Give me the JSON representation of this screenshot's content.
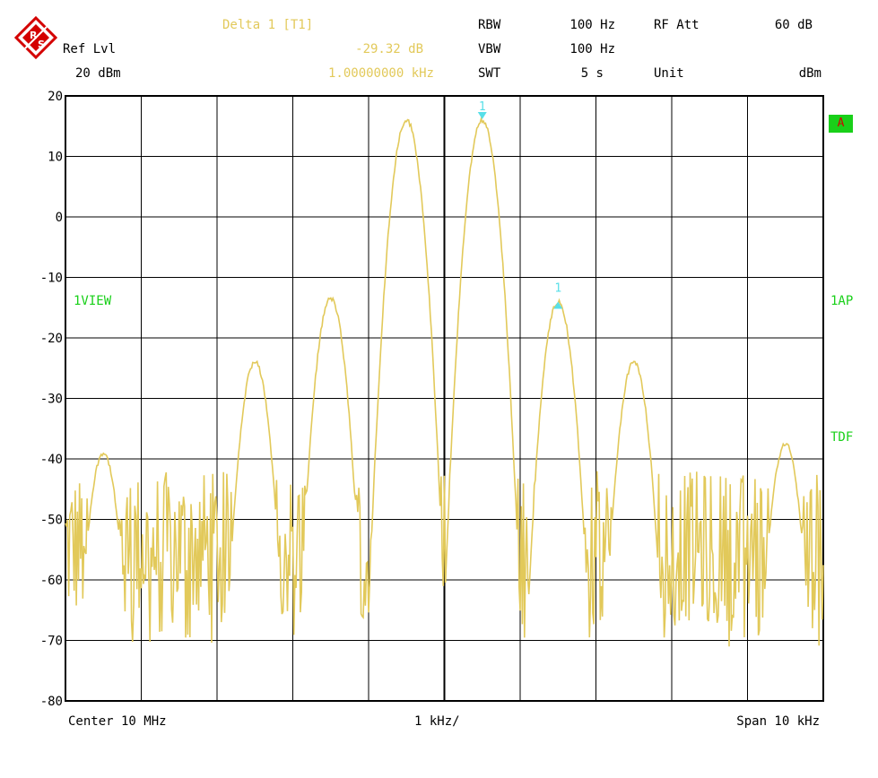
{
  "header": {
    "marker_title": "Delta 1 [T1]",
    "marker_level": "-29.32 dB",
    "marker_freq": "1.00000000 kHz",
    "ref_label": "Ref Lvl",
    "ref_value": "20 dBm",
    "rbw_label": "RBW",
    "rbw_value": "100 Hz",
    "vbw_label": "VBW",
    "vbw_value": "100 Hz",
    "swt_label": "SWT",
    "swt_value": "5 s",
    "rfatt_label": "RF Att",
    "rfatt_value": "60 dB",
    "unit_label": "Unit",
    "unit_value": "dBm"
  },
  "side": {
    "trace_badge": "A",
    "view": "1VIEW",
    "ap": "1AP",
    "tdf": "TDF"
  },
  "footer": {
    "center": "Center 10 MHz",
    "div": "1 kHz/",
    "span": "Span 10 kHz"
  },
  "markers": [
    {
      "label": "1",
      "x": 0.5,
      "y": 16,
      "dir": "down"
    },
    {
      "label": "1",
      "x": 1.5,
      "y": -14,
      "dir": "up"
    }
  ],
  "colors": {
    "trace": "#e2c95a",
    "grid": "#000000",
    "marker": "#58dfe8",
    "label_green": "#19d019"
  },
  "chart_data": {
    "type": "line",
    "ylim": [
      -80,
      20
    ],
    "xlim": [
      -5,
      5
    ],
    "yticks": [
      "20",
      "10",
      "0",
      "-10",
      "-20",
      "-30",
      "-40",
      "-50",
      "-60",
      "-70",
      "-80"
    ],
    "x_unit": "kHz offset from center",
    "peaks": [
      {
        "x": -4.5,
        "y": -39
      },
      {
        "x": -2.5,
        "y": -24
      },
      {
        "x": -1.5,
        "y": -13.5
      },
      {
        "x": -0.5,
        "y": 16
      },
      {
        "x": 0.5,
        "y": 16
      },
      {
        "x": 1.5,
        "y": -14
      },
      {
        "x": 2.5,
        "y": -24
      },
      {
        "x": 4.5,
        "y": -37.5
      }
    ],
    "noise_floor": [
      -71,
      -42
    ],
    "grid": true
  }
}
